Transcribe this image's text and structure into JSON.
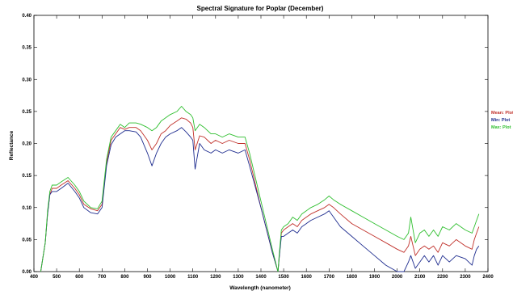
{
  "chart_data": {
    "type": "line",
    "title": "Spectral Signature for Poplar (December)",
    "xlabel": "Wavelength (nanometer)",
    "ylabel": "Reflectance",
    "xlim": [
      400,
      2400
    ],
    "ylim": [
      0.0,
      0.4
    ],
    "x_ticks": [
      400,
      500,
      600,
      700,
      800,
      900,
      1000,
      1100,
      1200,
      1300,
      1400,
      1500,
      1600,
      1700,
      1800,
      1900,
      2000,
      2100,
      2200,
      2300,
      2400
    ],
    "x_tick_labels": [
      "400",
      "500",
      "600",
      "700",
      "800",
      "900",
      "1000",
      "1100",
      "1200",
      "1300",
      "1400",
      "1500",
      "1600",
      "1700",
      "1800",
      "1900",
      "2000",
      "2100",
      "2200",
      "2300",
      "2400"
    ],
    "y_ticks": [
      0.0,
      0.05,
      0.1,
      0.15,
      0.2,
      0.25,
      0.3,
      0.35,
      0.4
    ],
    "y_tick_labels": [
      "0.00",
      "0.05",
      "0.10",
      "0.15",
      "0.20",
      "0.25",
      "0.30",
      "0.35",
      "0.40"
    ],
    "grid": false,
    "legend_position": "right",
    "series": [
      {
        "name": "Mean: Plot",
        "color": "#c0302a",
        "x": [
          430,
          450,
          460,
          470,
          480,
          500,
          520,
          550,
          580,
          600,
          620,
          650,
          680,
          700,
          720,
          740,
          760,
          780,
          800,
          820,
          850,
          870,
          900,
          920,
          940,
          960,
          980,
          1000,
          1030,
          1050,
          1070,
          1090,
          1100,
          1110,
          1130,
          1150,
          1180,
          1200,
          1230,
          1260,
          1300,
          1330,
          1350,
          1400,
          1450,
          1475,
          1480,
          1490,
          1500,
          1520,
          1540,
          1560,
          1580,
          1600,
          1620,
          1650,
          1680,
          1700,
          1720,
          1750,
          1800,
          1850,
          1900,
          1950,
          2000,
          2030,
          2050,
          2060,
          2080,
          2100,
          2120,
          2140,
          2160,
          2180,
          2200,
          2230,
          2260,
          2300,
          2330,
          2340,
          2350,
          2360
        ],
        "y": [
          0.0,
          0.045,
          0.09,
          0.12,
          0.13,
          0.13,
          0.135,
          0.142,
          0.13,
          0.12,
          0.105,
          0.098,
          0.095,
          0.105,
          0.17,
          0.205,
          0.215,
          0.225,
          0.222,
          0.225,
          0.225,
          0.22,
          0.205,
          0.19,
          0.2,
          0.215,
          0.22,
          0.228,
          0.235,
          0.24,
          0.238,
          0.232,
          0.225,
          0.19,
          0.212,
          0.21,
          0.2,
          0.205,
          0.2,
          0.205,
          0.2,
          0.2,
          0.175,
          0.1,
          0.03,
          0.0,
          0.02,
          0.06,
          0.065,
          0.07,
          0.075,
          0.07,
          0.08,
          0.085,
          0.09,
          0.095,
          0.1,
          0.105,
          0.1,
          0.09,
          0.075,
          0.065,
          0.055,
          0.045,
          0.035,
          0.03,
          0.04,
          0.055,
          0.025,
          0.035,
          0.04,
          0.035,
          0.04,
          0.03,
          0.045,
          0.04,
          0.05,
          0.04,
          0.035,
          0.05,
          0.06,
          0.07
        ]
      },
      {
        "name": "Min: Plot",
        "color": "#1f2d8f",
        "x": [
          430,
          450,
          460,
          470,
          480,
          500,
          520,
          550,
          580,
          600,
          620,
          650,
          680,
          700,
          720,
          740,
          760,
          780,
          800,
          820,
          850,
          870,
          900,
          920,
          940,
          960,
          980,
          1000,
          1030,
          1050,
          1070,
          1090,
          1100,
          1110,
          1130,
          1150,
          1180,
          1200,
          1230,
          1260,
          1300,
          1330,
          1350,
          1400,
          1450,
          1475,
          1480,
          1490,
          1500,
          1520,
          1540,
          1560,
          1580,
          1600,
          1620,
          1650,
          1680,
          1700,
          1720,
          1750,
          1800,
          1850,
          1900,
          1950,
          2000,
          2030,
          2050,
          2060,
          2080,
          2100,
          2120,
          2140,
          2160,
          2180,
          2200,
          2230,
          2260,
          2300,
          2330,
          2340,
          2350,
          2360
        ],
        "y": [
          0.0,
          0.045,
          0.09,
          0.12,
          0.125,
          0.125,
          0.13,
          0.138,
          0.125,
          0.115,
          0.1,
          0.092,
          0.09,
          0.1,
          0.165,
          0.198,
          0.21,
          0.215,
          0.22,
          0.22,
          0.218,
          0.21,
          0.185,
          0.165,
          0.185,
          0.2,
          0.21,
          0.215,
          0.22,
          0.225,
          0.218,
          0.21,
          0.205,
          0.16,
          0.2,
          0.19,
          0.185,
          0.19,
          0.185,
          0.19,
          0.185,
          0.19,
          0.165,
          0.1,
          0.03,
          0.0,
          0.02,
          0.055,
          0.055,
          0.06,
          0.065,
          0.06,
          0.07,
          0.075,
          0.08,
          0.085,
          0.09,
          0.095,
          0.085,
          0.07,
          0.055,
          0.04,
          0.025,
          0.01,
          0.0,
          0.0,
          0.015,
          0.025,
          0.005,
          0.015,
          0.025,
          0.015,
          0.025,
          0.01,
          0.025,
          0.015,
          0.025,
          0.02,
          0.01,
          0.025,
          0.035,
          0.04
        ]
      },
      {
        "name": "Max: Plot",
        "color": "#2fbf2f",
        "x": [
          430,
          450,
          460,
          470,
          480,
          500,
          520,
          550,
          580,
          600,
          620,
          650,
          680,
          700,
          720,
          740,
          760,
          780,
          800,
          820,
          850,
          870,
          900,
          920,
          940,
          960,
          980,
          1000,
          1030,
          1050,
          1070,
          1090,
          1100,
          1110,
          1130,
          1150,
          1180,
          1200,
          1230,
          1260,
          1300,
          1330,
          1350,
          1400,
          1450,
          1475,
          1480,
          1490,
          1500,
          1520,
          1540,
          1560,
          1580,
          1600,
          1620,
          1650,
          1680,
          1700,
          1720,
          1750,
          1800,
          1850,
          1900,
          1950,
          2000,
          2030,
          2050,
          2060,
          2080,
          2100,
          2120,
          2140,
          2160,
          2180,
          2200,
          2230,
          2260,
          2300,
          2330,
          2340,
          2350,
          2360
        ],
        "y": [
          0.0,
          0.045,
          0.095,
          0.125,
          0.135,
          0.135,
          0.14,
          0.147,
          0.135,
          0.125,
          0.11,
          0.1,
          0.098,
          0.11,
          0.175,
          0.21,
          0.22,
          0.23,
          0.225,
          0.232,
          0.232,
          0.23,
          0.225,
          0.22,
          0.225,
          0.235,
          0.24,
          0.245,
          0.25,
          0.258,
          0.25,
          0.245,
          0.24,
          0.22,
          0.23,
          0.225,
          0.215,
          0.215,
          0.21,
          0.215,
          0.21,
          0.21,
          0.185,
          0.11,
          0.035,
          0.0,
          0.025,
          0.065,
          0.07,
          0.075,
          0.085,
          0.08,
          0.09,
          0.095,
          0.1,
          0.105,
          0.112,
          0.118,
          0.112,
          0.105,
          0.095,
          0.085,
          0.075,
          0.065,
          0.055,
          0.05,
          0.06,
          0.085,
          0.045,
          0.06,
          0.065,
          0.055,
          0.065,
          0.055,
          0.07,
          0.065,
          0.075,
          0.065,
          0.06,
          0.07,
          0.08,
          0.09
        ]
      }
    ]
  }
}
